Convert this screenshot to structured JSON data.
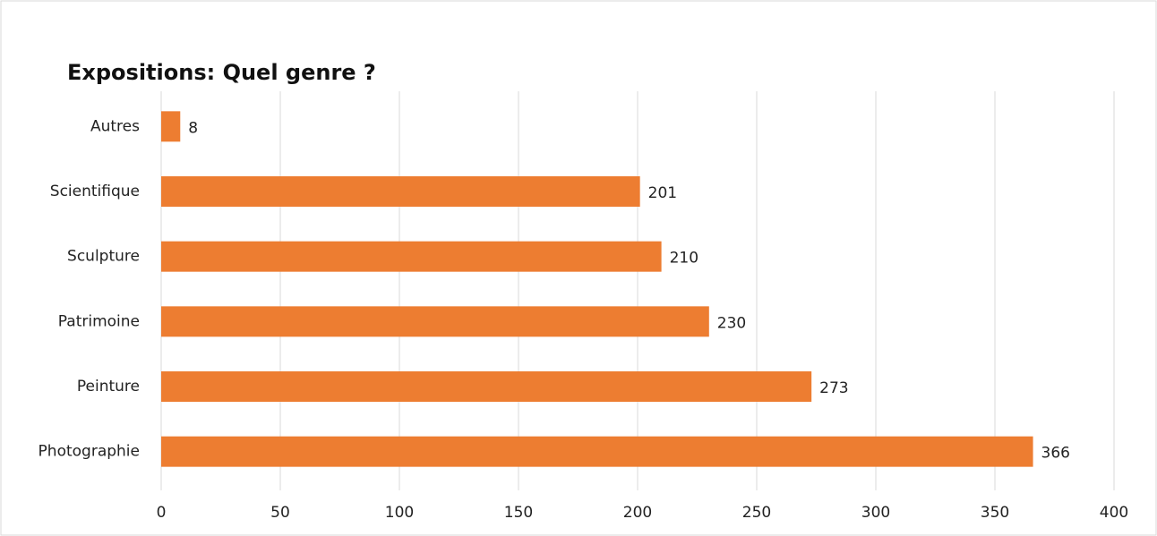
{
  "chart_data": {
    "type": "barh",
    "title": "Expositions: Quel genre ?",
    "categories": [
      "Autres",
      "Scientifique",
      "Sculpture",
      "Patrimoine",
      "Peinture",
      "Photographie"
    ],
    "values": [
      8,
      201,
      210,
      230,
      273,
      366
    ],
    "color": "#ed7d31",
    "xlim": [
      0,
      400
    ],
    "xticks": [
      0,
      50,
      100,
      150,
      200,
      250,
      300,
      350,
      400
    ],
    "grid": true
  }
}
